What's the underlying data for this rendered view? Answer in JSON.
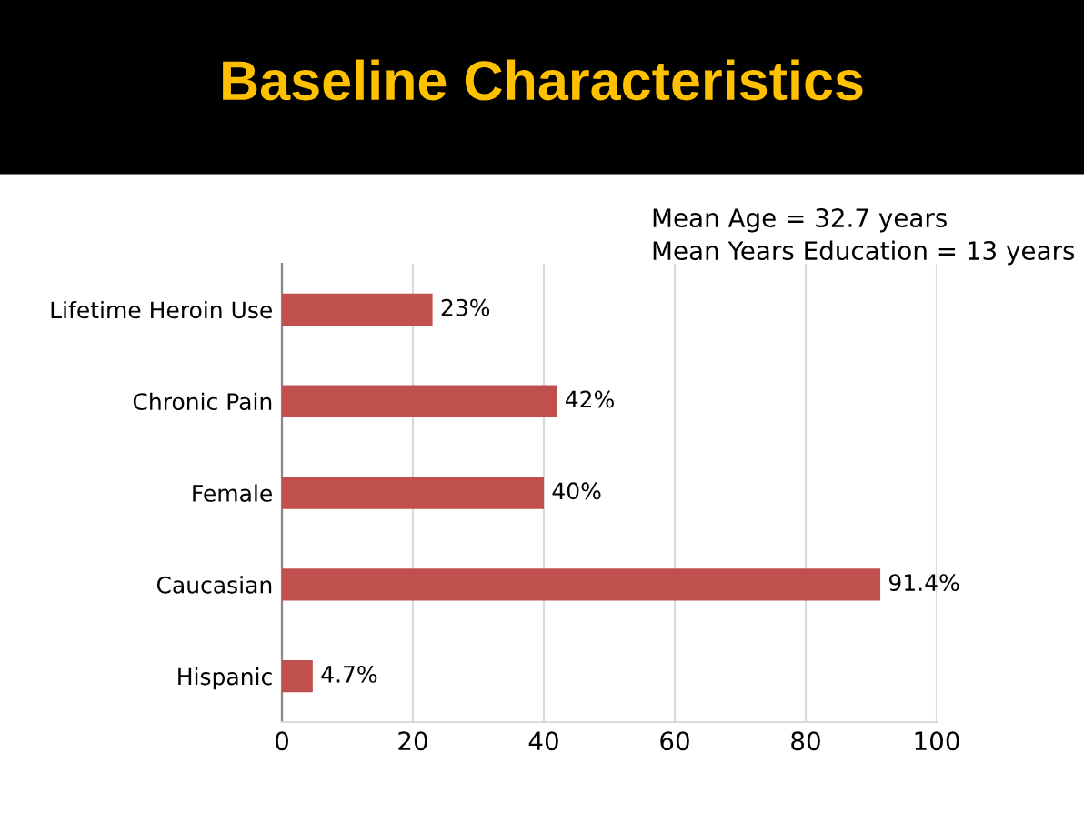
{
  "chart_data": {
    "type": "bar",
    "orientation": "horizontal",
    "title": "Baseline Characteristics",
    "annotations": [
      "Mean Age = 32.7 years",
      "Mean Years Education = 13 years"
    ],
    "categories": [
      "Lifetime Heroin Use",
      "Chronic Pain",
      "Female",
      "Caucasian",
      "Hispanic"
    ],
    "values": [
      23,
      42,
      40,
      91.4,
      4.7
    ],
    "value_labels": [
      "23%",
      "42%",
      "40%",
      "91.4%",
      "4.7%"
    ],
    "color": "#c0504d",
    "xlim": [
      0,
      100
    ],
    "xticks": [
      0,
      20,
      40,
      60,
      80,
      100
    ],
    "grid": "x"
  }
}
